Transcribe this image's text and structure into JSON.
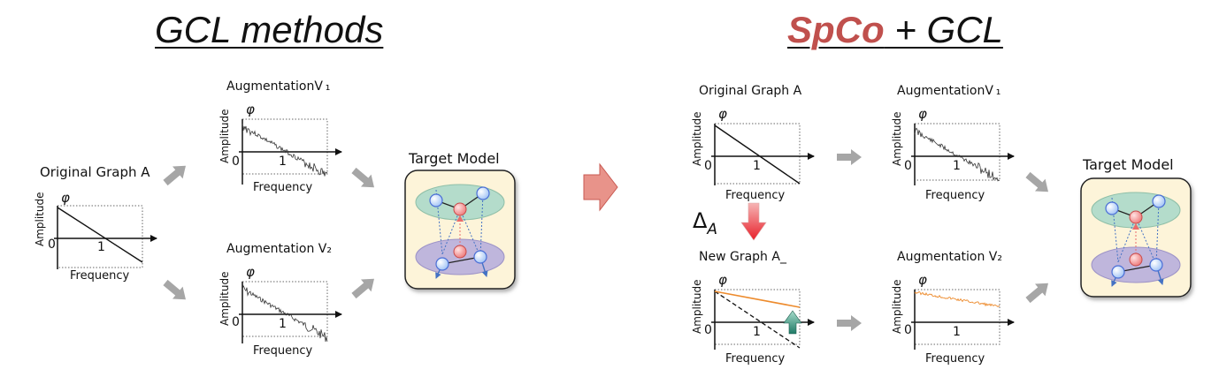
{
  "left_panel": {
    "title": "GCL methods",
    "original_graph_label": "Original Graph A",
    "aug1_label": "AugmentationV ₁",
    "aug2_label": "Augmentation V₂",
    "target_model_label": "Target Model"
  },
  "right_panel": {
    "title_accent": "SpCo",
    "title_rest": " + GCL",
    "original_graph_label": "Original Graph A",
    "new_graph_label": "New Graph A_",
    "delta_label": "Δ",
    "delta_subscript": "A",
    "aug1_label": "AugmentationV ₁",
    "aug2_label": "Augmentation V₂",
    "target_model_label": "Target Model"
  },
  "axes": {
    "ylabel": "Amplitude",
    "xlabel": "Frequency",
    "phi": "φ",
    "zero": "0",
    "one": "1"
  },
  "colors": {
    "accent": "#c0504d",
    "big_arrow": "#e8938a",
    "orange_curve": "#ed8b2d",
    "flow_arrow": "#a6a6a6",
    "green_ellipse": "#b4dccb",
    "purple_ellipse": "#bfb6dc",
    "node_blue": "#4b6fd6",
    "node_red": "#ea6b6b",
    "model_box": "#fdf4d9"
  }
}
